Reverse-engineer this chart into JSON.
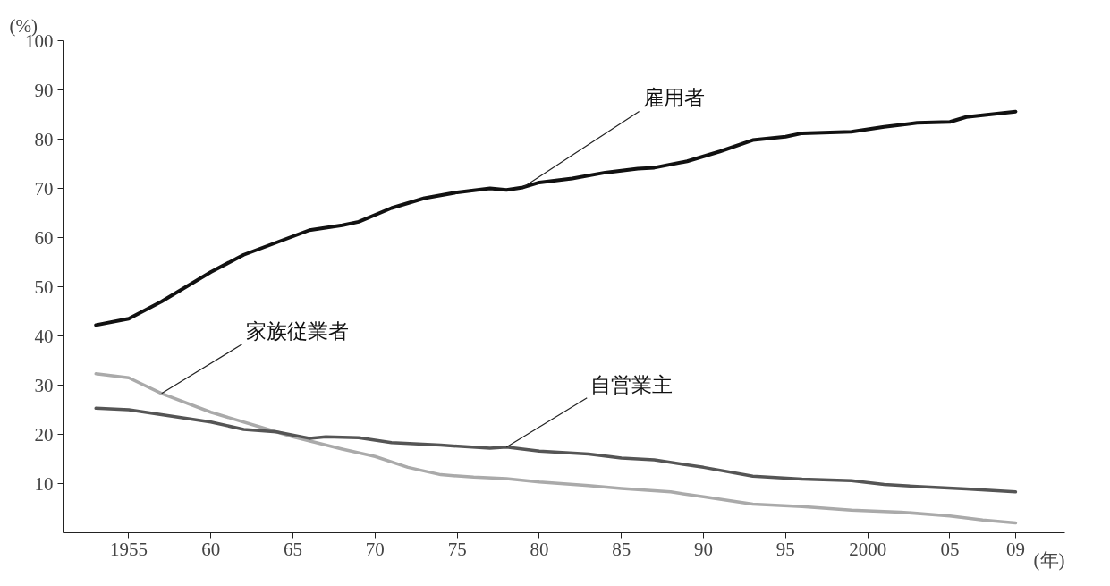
{
  "chart_data": {
    "type": "line",
    "xlabel": "(年)",
    "ylabel": "(%)",
    "xlim": [
      1951,
      2012
    ],
    "ylim": [
      0,
      100
    ],
    "xticks": [
      {
        "value": 1955,
        "label": "1955"
      },
      {
        "value": 1960,
        "label": "60"
      },
      {
        "value": 1965,
        "label": "65"
      },
      {
        "value": 1970,
        "label": "70"
      },
      {
        "value": 1975,
        "label": "75"
      },
      {
        "value": 1980,
        "label": "80"
      },
      {
        "value": 1985,
        "label": "85"
      },
      {
        "value": 1990,
        "label": "90"
      },
      {
        "value": 1995,
        "label": "95"
      },
      {
        "value": 2000,
        "label": "2000"
      },
      {
        "value": 2005,
        "label": "05"
      },
      {
        "value": 2009,
        "label": "09"
      }
    ],
    "yticks": [
      10,
      20,
      30,
      40,
      50,
      60,
      70,
      80,
      90,
      100
    ],
    "grid": false,
    "legend": false,
    "marker": "none",
    "line_style": "solid",
    "series": [
      {
        "name": "雇用者",
        "color": "#111111",
        "x": [
          1953,
          1955,
          1957,
          1959,
          1960,
          1962,
          1964,
          1966,
          1968,
          1969,
          1971,
          1973,
          1975,
          1977,
          1978,
          1979,
          1980,
          1982,
          1984,
          1986,
          1987,
          1989,
          1991,
          1993,
          1995,
          1996,
          1999,
          2001,
          2003,
          2005,
          2006,
          2009
        ],
        "values": [
          42.2,
          43.5,
          47,
          51,
          53,
          56.5,
          59,
          61.5,
          62.5,
          63.2,
          66,
          68,
          69.2,
          70,
          69.7,
          70.2,
          71.2,
          72,
          73.2,
          74,
          74.2,
          75.5,
          77.5,
          79.8,
          80.5,
          81.2,
          81.5,
          82.5,
          83.3,
          83.5,
          84.5,
          85.6
        ]
      },
      {
        "name": "家族従業者",
        "color": "#aaaaaa",
        "x": [
          1953,
          1955,
          1957,
          1960,
          1963,
          1965,
          1968,
          1970,
          1972,
          1974,
          1976,
          1978,
          1980,
          1983,
          1985,
          1988,
          1990,
          1993,
          1996,
          1999,
          2002,
          2005,
          2007,
          2009
        ],
        "values": [
          32.3,
          31.5,
          28.3,
          24.5,
          21.5,
          19.5,
          17,
          15.5,
          13.3,
          11.8,
          11.3,
          11,
          10.3,
          9.6,
          9,
          8.3,
          7.3,
          5.8,
          5.3,
          4.6,
          4.2,
          3.4,
          2.6,
          2.0
        ]
      },
      {
        "name": "自営業主",
        "color": "#555555",
        "x": [
          1953,
          1955,
          1957,
          1960,
          1962,
          1964,
          1966,
          1967,
          1969,
          1971,
          1974,
          1977,
          1978,
          1980,
          1983,
          1985,
          1987,
          1990,
          1993,
          1996,
          1999,
          2001,
          2003,
          2006,
          2009
        ],
        "values": [
          25.3,
          25,
          24,
          22.5,
          21,
          20.5,
          19.2,
          19.5,
          19.3,
          18.3,
          17.8,
          17.2,
          17.4,
          16.6,
          16,
          15.2,
          14.8,
          13.3,
          11.5,
          10.9,
          10.6,
          9.8,
          9.4,
          8.9,
          8.3
        ]
      }
    ]
  }
}
